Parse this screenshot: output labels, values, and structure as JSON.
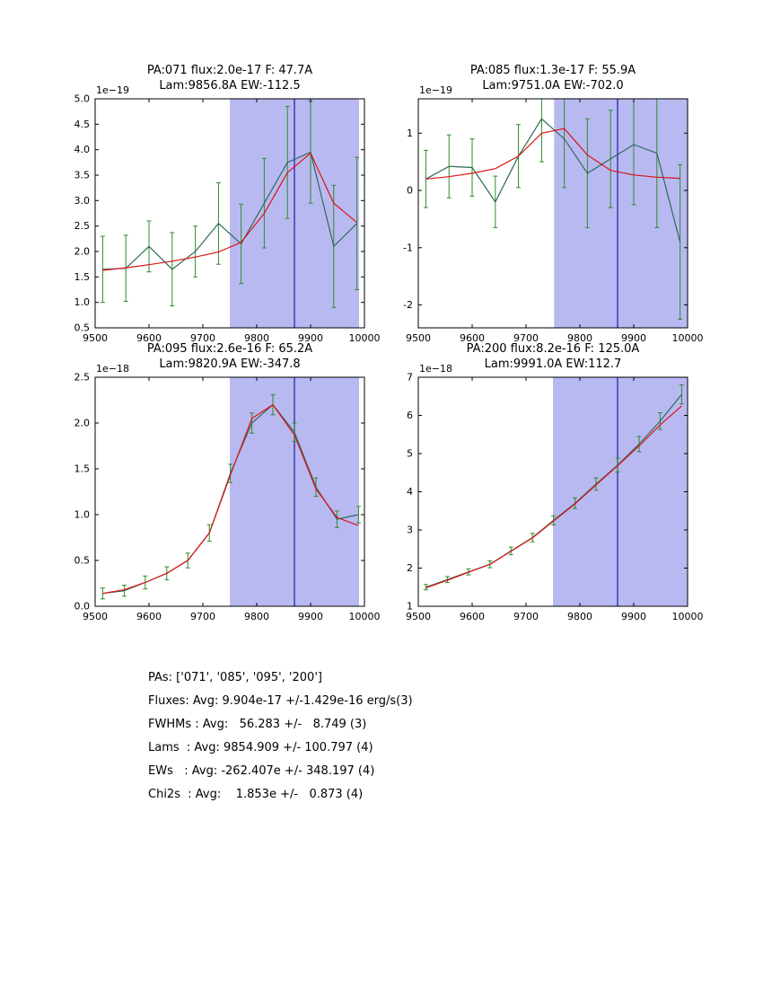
{
  "colors": {
    "background": "#ffffff",
    "shade": "#b9b9f2",
    "vline": "#2424b4",
    "data_line": "#2d6a58",
    "error_bar": "#2e8b2e",
    "fit_line": "#dc1414",
    "axis": "#000000"
  },
  "summary": {
    "lines": [
      "PAs: ['071', '085', '095', '200']",
      "Fluxes: Avg: 9.904e-17 +/-1.429e-16 erg/s(3)",
      "FWHMs : Avg:   56.283 +/-   8.749 (3)",
      "Lams  : Avg: 9854.909 +/- 100.797 (4)",
      "EWs   : Avg: -262.407e +/- 348.197 (4)",
      "Chi2s  : Avg:    1.853e +/-   0.873 (4)"
    ]
  },
  "chart_data": [
    {
      "type": "line",
      "title": "PA:071 flux:2.0e-17 F: 47.7A",
      "subtitle": "Lam:9856.8A EW:-112.5",
      "offset_label": "1e−19",
      "xlim": [
        9500,
        10000
      ],
      "ylim": [
        0.5,
        5.0
      ],
      "xticks": [
        9500,
        9600,
        9700,
        9800,
        9900,
        10000
      ],
      "xtick_labels": [
        "9500",
        "9600",
        "9700",
        "9800",
        "9900",
        "10000"
      ],
      "yticks": [
        0.5,
        1.0,
        1.5,
        2.0,
        2.5,
        3.0,
        3.5,
        4.0,
        4.5,
        5.0
      ],
      "ytick_labels": [
        "0.5",
        "1.0",
        "1.5",
        "2.0",
        "2.5",
        "3.0",
        "3.5",
        "4.0",
        "4.5",
        "5.0"
      ],
      "shaded_region": [
        9750,
        9990
      ],
      "vline": 9870,
      "x": [
        9514,
        9557,
        9600,
        9643,
        9686,
        9729,
        9771,
        9814,
        9857,
        9900,
        9943,
        9986
      ],
      "series": [
        {
          "name": "spectrum",
          "values": [
            1.65,
            1.67,
            2.1,
            1.65,
            2.0,
            2.55,
            2.15,
            2.95,
            3.75,
            3.95,
            2.1,
            2.55
          ],
          "errors": [
            0.65,
            0.65,
            0.5,
            0.72,
            0.5,
            0.8,
            0.78,
            0.88,
            1.1,
            1.0,
            1.2,
            1.3
          ]
        },
        {
          "name": "gaussian-fit",
          "values": [
            1.63,
            1.68,
            1.74,
            1.81,
            1.89,
            1.99,
            2.18,
            2.75,
            3.55,
            3.93,
            2.95,
            2.57
          ]
        }
      ]
    },
    {
      "type": "line",
      "title": "PA:085 flux:1.3e-17 F: 55.9A",
      "subtitle": "Lam:9751.0A EW:-702.0",
      "offset_label": "1e−19",
      "xlim": [
        9500,
        10000
      ],
      "ylim": [
        -2.4,
        1.6
      ],
      "xticks": [
        9500,
        9600,
        9700,
        9800,
        9900,
        10000
      ],
      "xtick_labels": [
        "9500",
        "9600",
        "9700",
        "9800",
        "9900",
        "10000"
      ],
      "yticks": [
        -2,
        -1,
        0,
        1
      ],
      "ytick_labels": [
        "-2",
        "-1",
        "0",
        "1"
      ],
      "shaded_region": [
        9752,
        10000
      ],
      "vline": 9870,
      "x": [
        9514,
        9557,
        9600,
        9643,
        9686,
        9729,
        9771,
        9814,
        9857,
        9900,
        9943,
        9986
      ],
      "series": [
        {
          "name": "spectrum",
          "values": [
            0.2,
            0.42,
            0.4,
            -0.2,
            0.6,
            1.25,
            0.9,
            0.3,
            0.55,
            0.8,
            0.65,
            -0.9
          ],
          "errors": [
            0.5,
            0.55,
            0.5,
            0.45,
            0.55,
            0.75,
            0.85,
            0.95,
            0.85,
            1.05,
            1.3,
            1.35
          ]
        },
        {
          "name": "gaussian-fit",
          "values": [
            0.2,
            0.24,
            0.3,
            0.38,
            0.6,
            1.0,
            1.08,
            0.62,
            0.35,
            0.27,
            0.23,
            0.21
          ]
        }
      ]
    },
    {
      "type": "line",
      "title": "PA:095 flux:2.6e-16 F: 65.2A",
      "subtitle": "Lam:9820.9A EW:-347.8",
      "offset_label": "1e−18",
      "xlim": [
        9500,
        10000
      ],
      "ylim": [
        0.0,
        2.5
      ],
      "xticks": [
        9500,
        9600,
        9700,
        9800,
        9900,
        10000
      ],
      "xtick_labels": [
        "9500",
        "9600",
        "9700",
        "9800",
        "9900",
        "10000"
      ],
      "yticks": [
        0.0,
        0.5,
        1.0,
        1.5,
        2.0,
        2.5
      ],
      "ytick_labels": [
        "0.0",
        "0.5",
        "1.0",
        "1.5",
        "2.0",
        "2.5"
      ],
      "shaded_region": [
        9750,
        9990
      ],
      "vline": 9870,
      "x": [
        9514,
        9554,
        9593,
        9633,
        9672,
        9712,
        9751,
        9791,
        9830,
        9870,
        9910,
        9949,
        9989
      ],
      "series": [
        {
          "name": "spectrum",
          "values": [
            0.14,
            0.17,
            0.26,
            0.36,
            0.5,
            0.8,
            1.45,
            2.0,
            2.2,
            1.9,
            1.3,
            0.95,
            1.0
          ],
          "errors": [
            0.06,
            0.06,
            0.07,
            0.07,
            0.08,
            0.09,
            0.1,
            0.11,
            0.11,
            0.1,
            0.1,
            0.09,
            0.09
          ]
        },
        {
          "name": "gaussian-fit",
          "values": [
            0.14,
            0.18,
            0.26,
            0.36,
            0.5,
            0.8,
            1.43,
            2.05,
            2.2,
            1.87,
            1.28,
            0.97,
            0.88
          ]
        }
      ]
    },
    {
      "type": "line",
      "title": "PA:200 flux:8.2e-16 F: 125.0A",
      "subtitle": "Lam:9991.0A EW:112.7",
      "offset_label": "1e−18",
      "xlim": [
        9500,
        10000
      ],
      "ylim": [
        1,
        7
      ],
      "xticks": [
        9500,
        9600,
        9700,
        9800,
        9900,
        10000
      ],
      "xtick_labels": [
        "9500",
        "9600",
        "9700",
        "9800",
        "9900",
        "10000"
      ],
      "yticks": [
        1,
        2,
        3,
        4,
        5,
        6,
        7
      ],
      "ytick_labels": [
        "1",
        "2",
        "3",
        "4",
        "5",
        "6",
        "7"
      ],
      "shaded_region": [
        9750,
        10000
      ],
      "vline": 9870,
      "x": [
        9514,
        9554,
        9593,
        9633,
        9672,
        9712,
        9751,
        9791,
        9830,
        9870,
        9910,
        9949,
        9989
      ],
      "series": [
        {
          "name": "spectrum",
          "values": [
            1.5,
            1.7,
            1.9,
            2.1,
            2.45,
            2.8,
            3.25,
            3.7,
            4.2,
            4.7,
            5.25,
            5.85,
            6.55
          ],
          "errors": [
            0.07,
            0.08,
            0.08,
            0.09,
            0.1,
            0.11,
            0.12,
            0.14,
            0.16,
            0.18,
            0.2,
            0.22,
            0.25
          ]
        },
        {
          "name": "gaussian-fit",
          "values": [
            1.48,
            1.68,
            1.89,
            2.1,
            2.44,
            2.79,
            3.23,
            3.68,
            4.18,
            4.68,
            5.2,
            5.75,
            6.25
          ]
        }
      ]
    }
  ]
}
